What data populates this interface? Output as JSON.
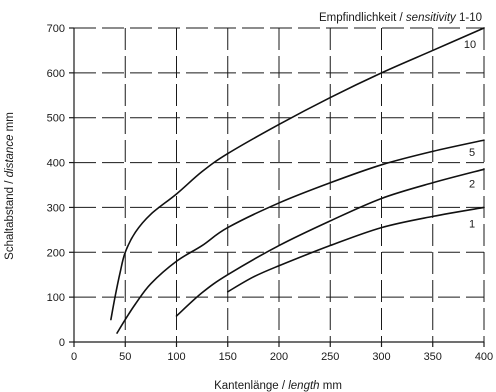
{
  "chart_data": {
    "type": "line",
    "title_prefix": "Empfindlichkeit / ",
    "title_italic": "sensitivity",
    "title_suffix": " 1-10",
    "xlabel_prefix": "Kantenlänge / ",
    "xlabel_italic": "length",
    "xlabel_suffix": "  mm",
    "ylabel_prefix": "Schaltabstand / ",
    "ylabel_italic": "distance",
    "ylabel_suffix": "  mm",
    "xlim": [
      0,
      400
    ],
    "ylim": [
      0,
      700
    ],
    "xticks": [
      0,
      50,
      100,
      150,
      200,
      250,
      300,
      350,
      400
    ],
    "yticks": [
      0,
      100,
      200,
      300,
      400,
      500,
      600,
      700
    ],
    "grid": true,
    "series": [
      {
        "name": "10",
        "x": [
          36,
          40,
          45,
          50,
          60,
          75,
          100,
          125,
          150,
          200,
          250,
          300,
          350,
          400
        ],
        "y": [
          50,
          100,
          155,
          200,
          245,
          285,
          330,
          380,
          420,
          485,
          545,
          600,
          650,
          700
        ]
      },
      {
        "name": "5",
        "x": [
          42,
          50,
          60,
          75,
          100,
          125,
          150,
          200,
          250,
          300,
          350,
          400
        ],
        "y": [
          20,
          50,
          85,
          130,
          180,
          215,
          255,
          310,
          355,
          395,
          425,
          450
        ]
      },
      {
        "name": "2",
        "x": [
          100,
          125,
          150,
          200,
          250,
          300,
          350,
          400
        ],
        "y": [
          58,
          110,
          150,
          215,
          270,
          320,
          355,
          385
        ]
      },
      {
        "name": "1",
        "x": [
          150,
          175,
          200,
          250,
          300,
          350,
          400
        ],
        "y": [
          112,
          145,
          170,
          215,
          255,
          280,
          300
        ]
      }
    ]
  }
}
